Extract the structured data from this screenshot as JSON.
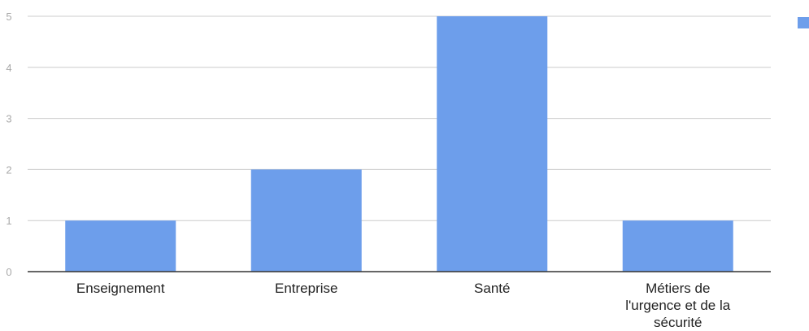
{
  "colors": {
    "bar": "#6d9eeb",
    "grid": "#cccccc",
    "axis": "#333333",
    "tick_text": "#aaaaaa"
  },
  "chart_data": {
    "type": "bar",
    "categories": [
      "Enseignement",
      "Entreprise",
      "Santé",
      "Métiers de l'urgence et de la sécurité"
    ],
    "category_labels": [
      [
        "Enseignement"
      ],
      [
        "Entreprise"
      ],
      [
        "Santé"
      ],
      [
        "Métiers de",
        "l'urgence et de la",
        "sécurité"
      ]
    ],
    "values": [
      1,
      2,
      5,
      1
    ],
    "ylim": [
      0,
      5
    ],
    "yticks": [
      0,
      1,
      2,
      3,
      4,
      5
    ],
    "grid": true,
    "legend": "top-right",
    "title": "",
    "xlabel": "",
    "ylabel": ""
  }
}
